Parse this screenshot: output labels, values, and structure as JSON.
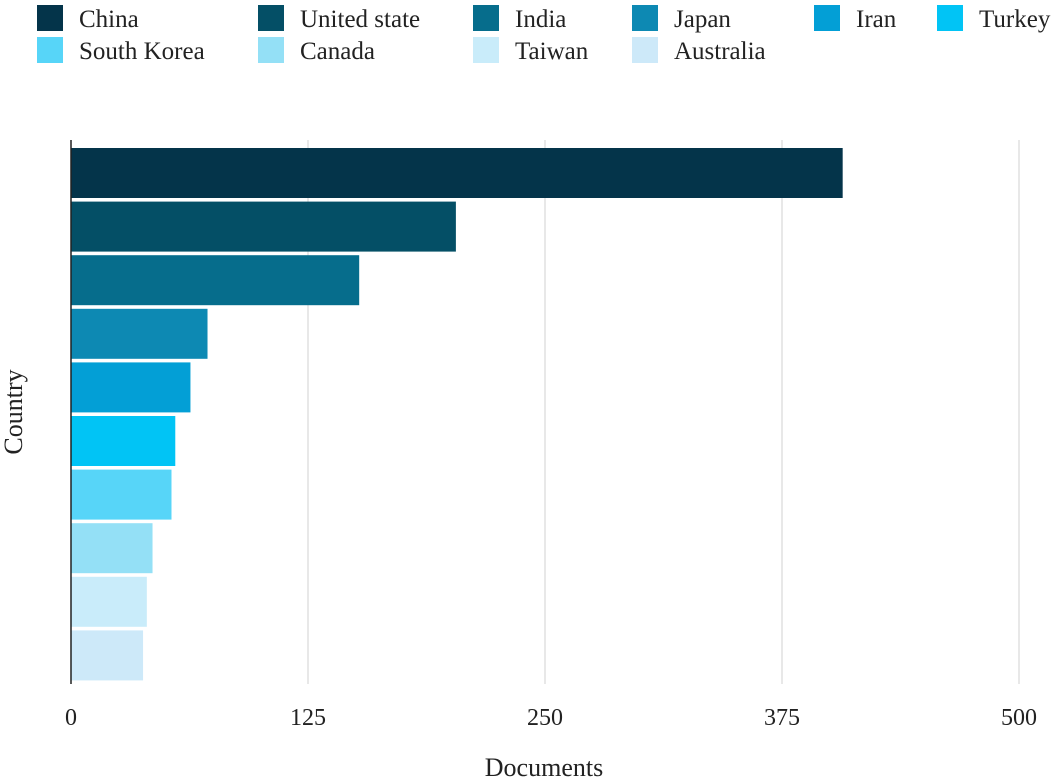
{
  "chart_data": {
    "type": "bar",
    "orientation": "horizontal",
    "xlabel": "Documents",
    "ylabel": "Country",
    "xlim": [
      0,
      500
    ],
    "xticks": [
      0,
      125,
      250,
      375,
      500
    ],
    "grid": true,
    "legend_position": "top",
    "categories": [
      "China",
      "United state",
      "India",
      "Japan",
      "Iran",
      "Turkey",
      "South Korea",
      "Canada",
      "Taiwan",
      "Australia"
    ],
    "values": [
      407,
      203,
      152,
      72,
      63,
      55,
      53,
      43,
      40,
      38
    ],
    "colors": [
      "#04344a",
      "#044f66",
      "#066d8c",
      "#0d89b3",
      "#039fd6",
      "#01c4f5",
      "#57d5f8",
      "#94e0f6",
      "#c9ecfa",
      "#cde9f9"
    ]
  }
}
